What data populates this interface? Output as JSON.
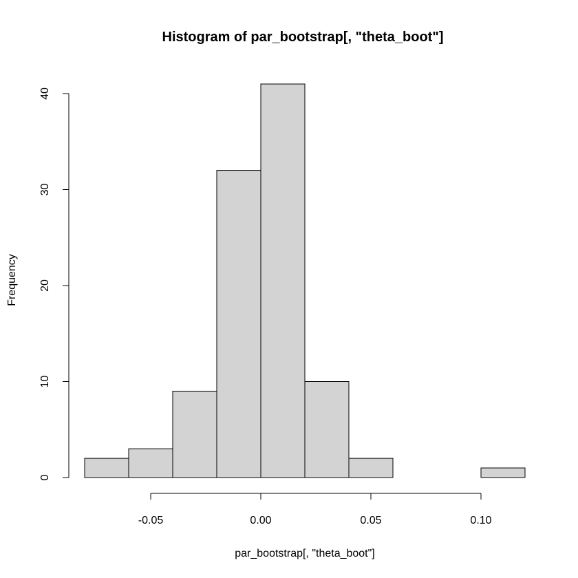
{
  "chart_data": {
    "type": "bar",
    "subtype": "histogram",
    "title": "Histogram of par_bootstrap[, \"theta_boot\"]",
    "xlabel": "par_bootstrap[, \"theta_boot\"]",
    "ylabel": "Frequency",
    "bin_edges": [
      -0.08,
      -0.06,
      -0.04,
      -0.02,
      0.0,
      0.02,
      0.04,
      0.06,
      0.08,
      0.1,
      0.12
    ],
    "values": [
      2,
      3,
      9,
      32,
      41,
      10,
      2,
      0,
      0,
      1
    ],
    "xlim": [
      -0.08,
      0.12
    ],
    "ylim": [
      0,
      41
    ],
    "x_ticks": [
      -0.05,
      0.0,
      0.05,
      0.1
    ],
    "x_tick_labels": [
      "-0.05",
      "0.00",
      "0.05",
      "0.10"
    ],
    "y_ticks": [
      0,
      10,
      20,
      30,
      40
    ],
    "y_tick_labels": [
      "0",
      "10",
      "20",
      "30",
      "40"
    ],
    "bar_color": "#d3d3d3",
    "edge_color": "#000000",
    "grid": false
  }
}
